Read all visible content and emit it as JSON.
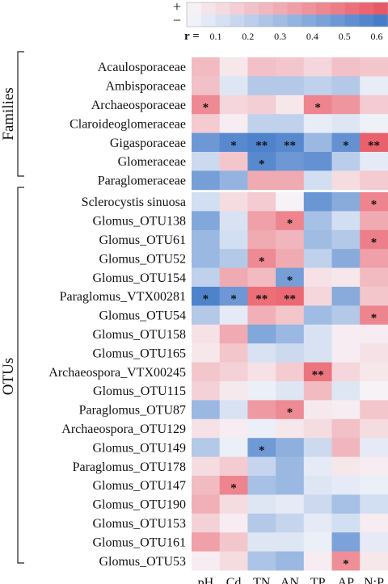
{
  "chart_data": {
    "type": "heatmap",
    "columns": [
      "pH",
      "Cd",
      "TN",
      "AN",
      "TP",
      "AP",
      "N:P"
    ],
    "groups": [
      {
        "label": "Families",
        "rows": [
          {
            "name": "Acaulosporaceae",
            "r": [
              0.22,
              0.06,
              0.2,
              0.18,
              0.12,
              0.2,
              0.18
            ],
            "stars": [
              "",
              "",
              "",
              "",
              "",
              "",
              ""
            ]
          },
          {
            "name": "Ambisporaceae",
            "r": [
              0.2,
              -0.08,
              -0.22,
              -0.22,
              -0.18,
              -0.22,
              -0.05
            ],
            "stars": [
              "",
              "",
              "",
              "",
              "",
              "",
              ""
            ]
          },
          {
            "name": "Archaeosporaceae",
            "r": [
              0.4,
              0.12,
              0.15,
              0.06,
              0.42,
              0.36,
              0.16
            ],
            "stars": [
              "*",
              "",
              "",
              "",
              "*",
              "",
              ""
            ]
          },
          {
            "name": "Claroideoglomeraceae",
            "r": [
              0.16,
              0.04,
              -0.18,
              -0.18,
              -0.05,
              -0.08,
              -0.03
            ],
            "stars": [
              "",
              "",
              "",
              "",
              "",
              "",
              ""
            ]
          },
          {
            "name": "Gigasporaceae",
            "r": [
              -0.45,
              -0.52,
              -0.55,
              -0.52,
              -0.3,
              -0.48,
              0.55
            ],
            "stars": [
              "",
              "*",
              "**",
              "**",
              "",
              "*",
              "**"
            ]
          },
          {
            "name": "Glomeraceae",
            "r": [
              -0.14,
              0.18,
              -0.52,
              -0.45,
              -0.48,
              -0.2,
              -0.06
            ],
            "stars": [
              "",
              "",
              "*",
              "",
              "",
              "",
              ""
            ]
          },
          {
            "name": "Paraglomeraceae",
            "r": [
              -0.42,
              -0.32,
              0.28,
              0.28,
              -0.12,
              0.1,
              0.16
            ],
            "stars": [
              "",
              "",
              "",
              "",
              "",
              "",
              ""
            ]
          }
        ]
      },
      {
        "label": "OTUs",
        "rows": [
          {
            "name": "Sclerocystis sinuosa",
            "r": [
              -0.12,
              0.1,
              0.16,
              0.02,
              -0.46,
              -0.36,
              0.42
            ],
            "stars": [
              "",
              "",
              "",
              "",
              "",
              "",
              "*"
            ]
          },
          {
            "name": "Glomus_OTU138",
            "r": [
              -0.38,
              -0.1,
              0.32,
              0.42,
              -0.26,
              -0.12,
              0.28
            ],
            "stars": [
              "",
              "",
              "",
              "*",
              "",
              "",
              ""
            ]
          },
          {
            "name": "Glomus_OTU61",
            "r": [
              -0.3,
              -0.12,
              0.28,
              0.24,
              -0.28,
              -0.22,
              0.44
            ],
            "stars": [
              "",
              "",
              "",
              "",
              "",
              "",
              "*"
            ]
          },
          {
            "name": "Glomus_OTU52",
            "r": [
              -0.3,
              -0.22,
              0.4,
              0.28,
              -0.18,
              -0.36,
              0.32
            ],
            "stars": [
              "",
              "",
              "*",
              "",
              "",
              "",
              ""
            ]
          },
          {
            "name": "Glomus_OTU154",
            "r": [
              -0.18,
              0.28,
              0.22,
              -0.42,
              0.08,
              0.06,
              0.22
            ],
            "stars": [
              "",
              "",
              "",
              "*",
              "",
              "",
              ""
            ]
          },
          {
            "name": "Paraglomus_VTX00281",
            "r": [
              -0.55,
              -0.45,
              0.5,
              0.52,
              0.12,
              -0.36,
              0.18
            ],
            "stars": [
              "*",
              "*",
              "**",
              "**",
              "",
              "",
              ""
            ]
          },
          {
            "name": "Glomus_OTU54",
            "r": [
              -0.22,
              -0.06,
              0.26,
              0.18,
              -0.28,
              -0.22,
              0.42
            ],
            "stars": [
              "",
              "",
              "",
              "",
              "",
              "",
              "*"
            ]
          },
          {
            "name": "Glomus_OTU158",
            "r": [
              0.08,
              0.28,
              -0.38,
              -0.3,
              -0.1,
              0.04,
              0.04
            ],
            "stars": [
              "",
              "",
              "",
              "",
              "",
              "",
              ""
            ]
          },
          {
            "name": "Glomus_OTU165",
            "r": [
              0.06,
              0.18,
              -0.1,
              -0.14,
              -0.1,
              0.04,
              0.08
            ],
            "stars": [
              "",
              "",
              "",
              "",
              "",
              "",
              ""
            ]
          },
          {
            "name": "Archaeospora_VTX00245",
            "r": [
              0.18,
              0.14,
              0.08,
              0.16,
              0.48,
              0.12,
              0.06
            ],
            "stars": [
              "",
              "",
              "",
              "",
              "**",
              "",
              ""
            ]
          },
          {
            "name": "Glomus_OTU115",
            "r": [
              0.14,
              0.05,
              -0.04,
              -0.08,
              0.22,
              -0.08,
              0.02
            ],
            "stars": [
              "",
              "",
              "",
              "",
              "",
              "",
              ""
            ]
          },
          {
            "name": "Paraglomus_OTU87",
            "r": [
              -0.3,
              -0.1,
              0.34,
              0.4,
              0.05,
              0.04,
              0.18
            ],
            "stars": [
              "",
              "",
              "",
              "*",
              "",
              "",
              ""
            ]
          },
          {
            "name": "Archaeospora_OTU129",
            "r": [
              0.08,
              0.04,
              -0.04,
              0.06,
              0.1,
              0.2,
              0.1
            ],
            "stars": [
              "",
              "",
              "",
              "",
              "",
              "",
              ""
            ]
          },
          {
            "name": "Glomus_OTU149",
            "r": [
              -0.22,
              -0.04,
              -0.44,
              -0.34,
              -0.14,
              0.24,
              -0.06
            ],
            "stars": [
              "",
              "",
              "*",
              "",
              "",
              "",
              ""
            ]
          },
          {
            "name": "Paraglomus_OTU178",
            "r": [
              0.1,
              0.16,
              -0.16,
              -0.3,
              -0.06,
              0.06,
              0.04
            ],
            "stars": [
              "",
              "",
              "",
              "",
              "",
              "",
              ""
            ]
          },
          {
            "name": "Glomus_OTU147",
            "r": [
              0.22,
              0.42,
              -0.26,
              -0.3,
              -0.08,
              -0.06,
              -0.04
            ],
            "stars": [
              "",
              "*",
              "",
              "",
              "",
              "",
              ""
            ]
          },
          {
            "name": "Glomus_OTU190",
            "r": [
              0.26,
              0.1,
              -0.08,
              -0.06,
              -0.14,
              -0.26,
              -0.12
            ],
            "stars": [
              "",
              "",
              "",
              "",
              "",
              "",
              ""
            ]
          },
          {
            "name": "Glomus_OTU153",
            "r": [
              0.14,
              0.04,
              -0.22,
              -0.16,
              -0.06,
              -0.12,
              0.04
            ],
            "stars": [
              "",
              "",
              "",
              "",
              "",
              "",
              ""
            ]
          },
          {
            "name": "Glomus_OTU161",
            "r": [
              0.32,
              0.18,
              -0.08,
              -0.08,
              -0.04,
              -0.4,
              -0.06
            ],
            "stars": [
              "",
              "",
              "",
              "",
              "",
              "",
              ""
            ]
          },
          {
            "name": "Glomus_OTU53",
            "r": [
              0.04,
              0.1,
              -0.24,
              -0.3,
              0.04,
              0.38,
              0.06
            ],
            "stars": [
              "",
              "",
              "",
              "",
              "",
              "*",
              ""
            ]
          }
        ]
      }
    ],
    "legend": {
      "positive_symbol": "+",
      "negative_symbol": "−",
      "r_label": "r =",
      "ticks": [
        "0.1",
        "0.2",
        "0.3",
        "0.4",
        "0.5",
        "0.6"
      ],
      "tick_values": [
        0.1,
        0.2,
        0.3,
        0.4,
        0.5,
        0.6
      ],
      "range": [
        0.0,
        0.6
      ],
      "placement": "top-right"
    },
    "colors": {
      "positive": "#e8535f",
      "negative": "#3f78c8",
      "neutral": "#f7f7fb"
    }
  }
}
